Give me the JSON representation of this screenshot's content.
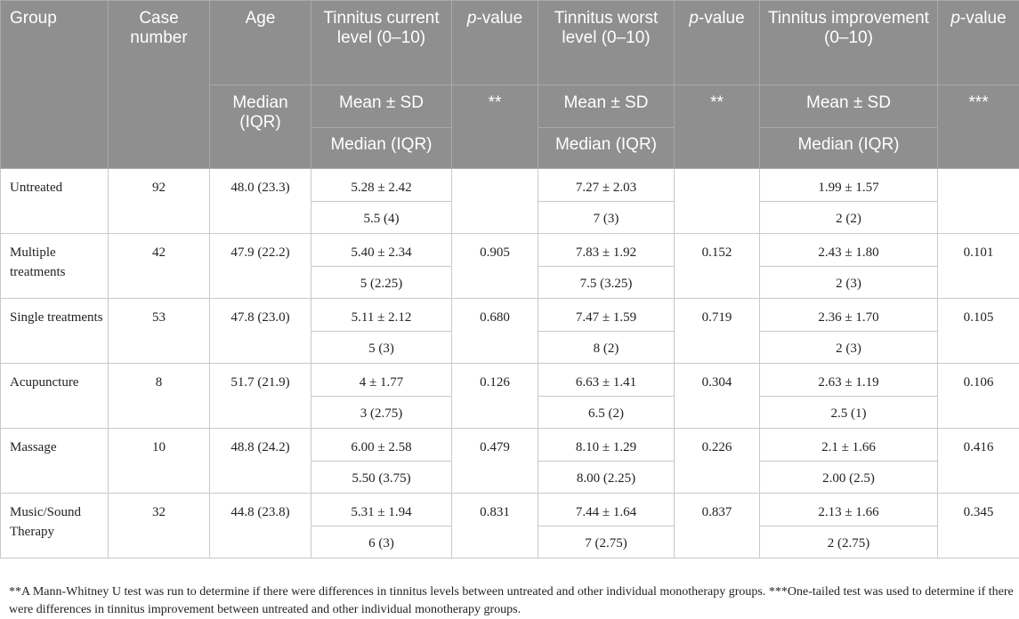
{
  "header": {
    "group": "Group",
    "case_number": "Case number",
    "age": "Age",
    "current": "Tinnitus current level (0–10)",
    "p_italic": "p",
    "p_rest": "-value",
    "worst": "Tinnitus worst level (0–10)",
    "improvement": "Tinnitus improvement (0–10)",
    "median_iqr": "Median (IQR)",
    "mean_sd": "Mean ± SD",
    "p_current_mark": "**",
    "p_worst_mark": "**",
    "p_improvement_mark": "***"
  },
  "rows": [
    {
      "group": "Untreated",
      "n": "92",
      "age": "48.0 (23.3)",
      "cur_mean": "5.28 ± 2.42",
      "cur_med": "5.5 (4)",
      "p_cur": "",
      "worst_mean": "7.27 ± 2.03",
      "worst_med": "7 (3)",
      "p_worst": "",
      "imp_mean": "1.99 ± 1.57",
      "imp_med": "2 (2)",
      "p_imp": ""
    },
    {
      "group": "Multiple treatments",
      "n": "42",
      "age": "47.9 (22.2)",
      "cur_mean": "5.40 ± 2.34",
      "cur_med": "5 (2.25)",
      "p_cur": "0.905",
      "worst_mean": "7.83 ± 1.92",
      "worst_med": "7.5 (3.25)",
      "p_worst": "0.152",
      "imp_mean": "2.43 ± 1.80",
      "imp_med": "2 (3)",
      "p_imp": "0.101"
    },
    {
      "group": "Single treatments",
      "n": "53",
      "age": "47.8 (23.0)",
      "cur_mean": "5.11 ± 2.12",
      "cur_med": "5 (3)",
      "p_cur": "0.680",
      "worst_mean": "7.47 ± 1.59",
      "worst_med": "8 (2)",
      "p_worst": "0.719",
      "imp_mean": "2.36 ± 1.70",
      "imp_med": "2 (3)",
      "p_imp": "0.105"
    },
    {
      "group": "Acupuncture",
      "n": "8",
      "age": "51.7 (21.9)",
      "cur_mean": "4 ± 1.77",
      "cur_med": "3 (2.75)",
      "p_cur": "0.126",
      "worst_mean": "6.63 ± 1.41",
      "worst_med": "6.5 (2)",
      "p_worst": "0.304",
      "imp_mean": "2.63 ± 1.19",
      "imp_med": "2.5 (1)",
      "p_imp": "0.106"
    },
    {
      "group": "Massage",
      "n": "10",
      "age": "48.8 (24.2)",
      "cur_mean": "6.00 ± 2.58",
      "cur_med": "5.50 (3.75)",
      "p_cur": "0.479",
      "worst_mean": "8.10 ± 1.29",
      "worst_med": "8.00 (2.25)",
      "p_worst": "0.226",
      "imp_mean": "2.1 ± 1.66",
      "imp_med": "2.00 (2.5)",
      "p_imp": "0.416"
    },
    {
      "group": "Music/Sound Therapy",
      "n": "32",
      "age": "44.8 (23.8)",
      "cur_mean": "5.31 ± 1.94",
      "cur_med": "6 (3)",
      "p_cur": "0.831",
      "worst_mean": "7.44 ± 1.64",
      "worst_med": "7 (2.75)",
      "p_worst": "0.837",
      "imp_mean": "2.13 ± 1.66",
      "imp_med": "2 (2.75)",
      "p_imp": "0.345"
    }
  ],
  "footnote": "**A Mann-Whitney U test was run to determine if there were differences in tinnitus levels between untreated and other individual monotherapy groups. ***One-tailed test was used to determine if there were differences in tinnitus improvement between untreated and other individual monotherapy groups."
}
